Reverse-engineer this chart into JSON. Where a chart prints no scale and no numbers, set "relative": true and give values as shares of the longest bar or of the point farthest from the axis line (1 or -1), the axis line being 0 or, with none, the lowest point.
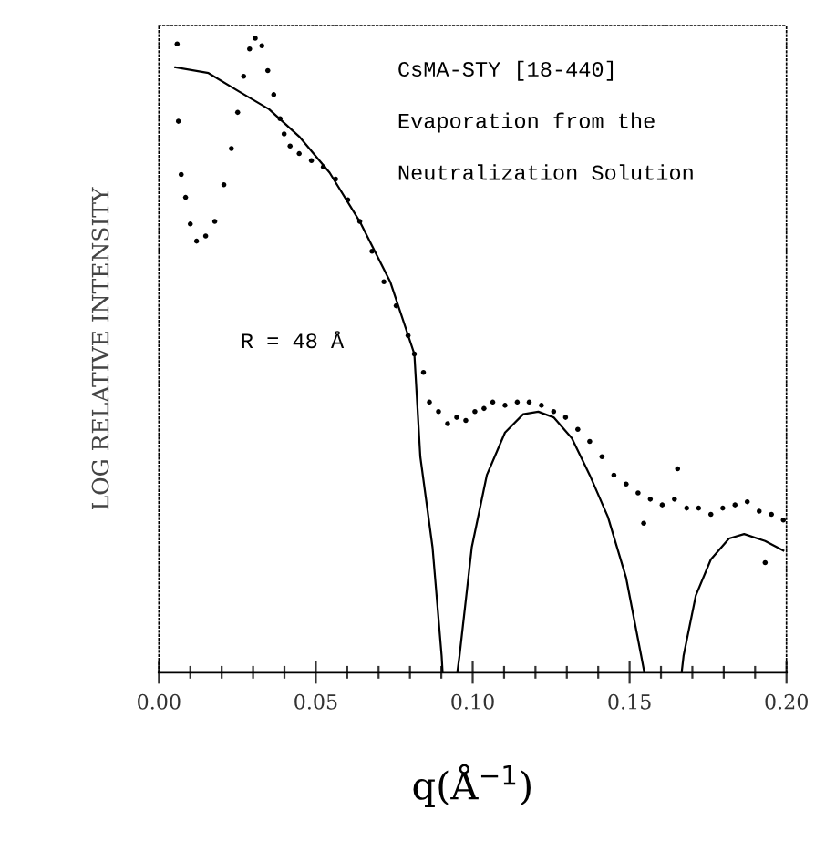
{
  "chart_data": {
    "type": "scatter",
    "relative": true,
    "xlabel": "q(Å$^{−1}$)",
    "ylabel": "LOG RELATIVE INTENSITY",
    "annotations": [
      "CsMA-STY [18-440]",
      "Evaporation from the",
      "Neutralization Solution",
      "R = 48 Å"
    ],
    "xlim": [
      0,
      0.2
    ],
    "xticks": [
      {
        "value": 0,
        "label": "0.00"
      },
      {
        "value": 0.01,
        "label": null
      },
      {
        "value": 0.02,
        "label": null
      },
      {
        "value": 0.03,
        "label": null
      },
      {
        "value": 0.04,
        "label": null
      },
      {
        "value": 0.05,
        "label": "0.05"
      },
      {
        "value": 0.06,
        "label": null
      },
      {
        "value": 0.07,
        "label": null
      },
      {
        "value": 0.08,
        "label": null
      },
      {
        "value": 0.09,
        "label": null
      },
      {
        "value": 0.1,
        "label": "0.10"
      },
      {
        "value": 0.11,
        "label": null
      },
      {
        "value": 0.12,
        "label": null
      },
      {
        "value": 0.13,
        "label": null
      },
      {
        "value": 0.14,
        "label": null
      },
      {
        "value": 0.15,
        "label": "0.15"
      },
      {
        "value": 0.16,
        "label": null
      },
      {
        "value": 0.17,
        "label": null
      },
      {
        "value": 0.18,
        "label": null
      },
      {
        "value": 0.19,
        "label": null
      },
      {
        "value": 0.2,
        "label": "0.20"
      }
    ],
    "tick_labels": "x",
    "grid": false,
    "legend": false,
    "series": [
      {
        "marker": "circle",
        "color": "#000000",
        "x": [
          0.0058,
          0.0062,
          0.0071,
          0.0085,
          0.01,
          0.012,
          0.0149,
          0.0178,
          0.0207,
          0.0231,
          0.0251,
          0.027,
          0.0289,
          0.0307,
          0.0328,
          0.0347,
          0.0366,
          0.0386,
          0.0399,
          0.0418,
          0.0447,
          0.0486,
          0.0524,
          0.0563,
          0.0602,
          0.064,
          0.0679,
          0.0717,
          0.0756,
          0.0794,
          0.0814,
          0.0843,
          0.0862,
          0.0891,
          0.092,
          0.0949,
          0.0978,
          0.1007,
          0.1036,
          0.1064,
          0.1103,
          0.1142,
          0.118,
          0.1219,
          0.1258,
          0.1296,
          0.1335,
          0.1373,
          0.1412,
          0.145,
          0.1489,
          0.1527,
          0.1545,
          0.1566,
          0.1604,
          0.1643,
          0.1653,
          0.1682,
          0.172,
          0.1759,
          0.1797,
          0.1836,
          0.1875,
          0.1913,
          0.1932,
          0.1952,
          0.199
        ],
        "values": [
          0.991,
          0.869,
          0.785,
          0.749,
          0.707,
          0.68,
          0.688,
          0.711,
          0.769,
          0.826,
          0.883,
          0.94,
          0.983,
          1.0,
          0.988,
          0.949,
          0.911,
          0.873,
          0.849,
          0.83,
          0.818,
          0.807,
          0.797,
          0.778,
          0.745,
          0.711,
          0.664,
          0.616,
          0.578,
          0.531,
          0.502,
          0.473,
          0.426,
          0.411,
          0.392,
          0.402,
          0.397,
          0.411,
          0.416,
          0.426,
          0.421,
          0.426,
          0.426,
          0.421,
          0.411,
          0.402,
          0.383,
          0.364,
          0.34,
          0.311,
          0.297,
          0.283,
          0.235,
          0.273,
          0.264,
          0.273,
          0.321,
          0.259,
          0.259,
          0.249,
          0.259,
          0.264,
          0.269,
          0.254,
          0.173,
          0.249,
          0.24
        ]
      },
      {
        "type": "line",
        "marker": "none",
        "line_style": "solid",
        "color": "#000000",
        "x": [
          0.0052,
          0.0158,
          0.0255,
          0.0351,
          0.0447,
          0.0544,
          0.064,
          0.0737,
          0.0814,
          0.0833,
          0.0872,
          0.0901,
          0.0904,
          0.0928,
          0.0951,
          0.0958,
          0.0997,
          0.1045,
          0.1103,
          0.1161,
          0.1209,
          0.1258,
          0.1316,
          0.1373,
          0.1431,
          0.1489,
          0.1537,
          0.1547,
          0.1606,
          0.1666,
          0.1672,
          0.1711,
          0.1759,
          0.1817,
          0.1865,
          0.1932,
          0.199
        ],
        "values": [
          0.954,
          0.945,
          0.916,
          0.888,
          0.845,
          0.788,
          0.711,
          0.616,
          0.502,
          0.34,
          0.197,
          0.026,
          0,
          null,
          0,
          0.026,
          0.197,
          0.311,
          0.378,
          0.407,
          0.411,
          0.402,
          0.369,
          0.311,
          0.245,
          0.149,
          0.026,
          0,
          null,
          0,
          0.026,
          0.121,
          0.178,
          0.211,
          0.218,
          0.207,
          0.192
        ]
      }
    ]
  }
}
